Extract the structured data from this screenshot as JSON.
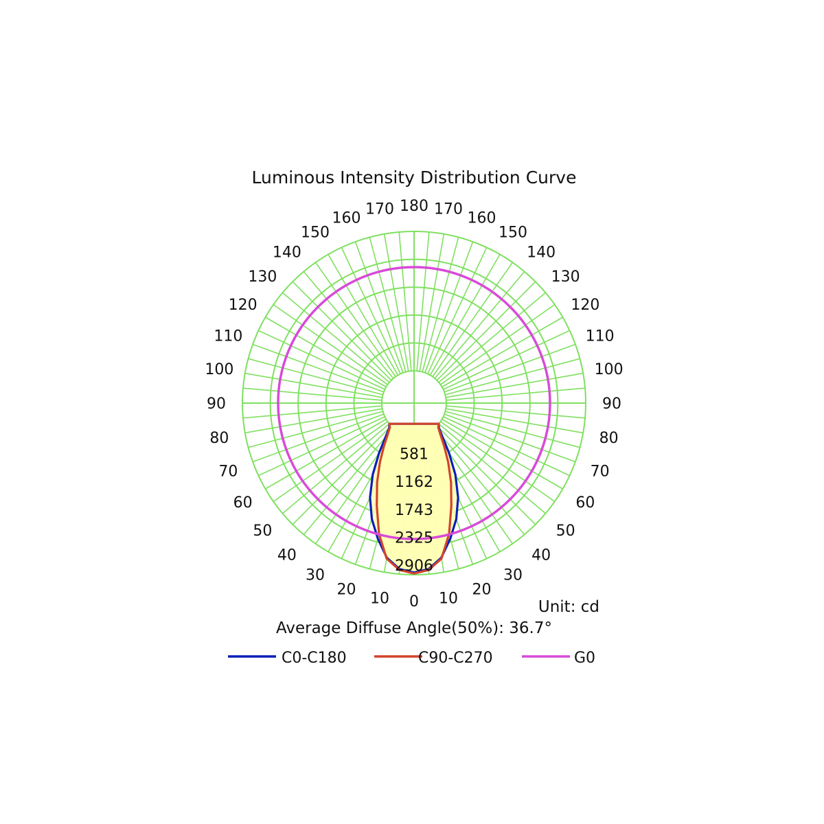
{
  "chart_data": {
    "type": "polar",
    "title": "Luminous Intensity Distribution Curve",
    "unit_label": "Unit: cd",
    "average_angle_label": "Average Diffuse Angle(50%): 36.7°",
    "radial_ticks": [
      581,
      1162,
      1743,
      2325,
      2906
    ],
    "angle_labels_left": [
      "0",
      "10",
      "20",
      "30",
      "40",
      "50",
      "60",
      "70",
      "80",
      "90",
      "100",
      "110",
      "120",
      "130",
      "140",
      "150",
      "160",
      "170",
      "180"
    ],
    "angle_labels_right": [
      "10",
      "20",
      "30",
      "40",
      "50",
      "60",
      "70",
      "80",
      "90",
      "100",
      "110",
      "120",
      "130",
      "140",
      "150",
      "160",
      "170"
    ],
    "colors": {
      "grid": "#7fe05f",
      "fill": "#ffffb4",
      "text": "#111111"
    },
    "series": [
      {
        "name": "C0-C180",
        "color": "#0b1fb8",
        "angles": [
          0,
          5,
          10,
          15,
          20,
          25,
          30,
          35,
          40,
          45,
          50
        ],
        "values": [
          2860,
          2800,
          2600,
          2250,
          1900,
          1500,
          1050,
          600,
          250,
          60,
          0
        ],
        "symmetric": true
      },
      {
        "name": "C90-C270",
        "color": "#d2442c",
        "angles": [
          0,
          5,
          10,
          15,
          20,
          25,
          30,
          35,
          40,
          45,
          50
        ],
        "values": [
          2880,
          2820,
          2620,
          2150,
          1600,
          1150,
          750,
          420,
          180,
          40,
          0
        ],
        "symmetric": true
      },
      {
        "name": "G0",
        "color": "#d84ad8",
        "constant_value": 2906
      }
    ]
  }
}
